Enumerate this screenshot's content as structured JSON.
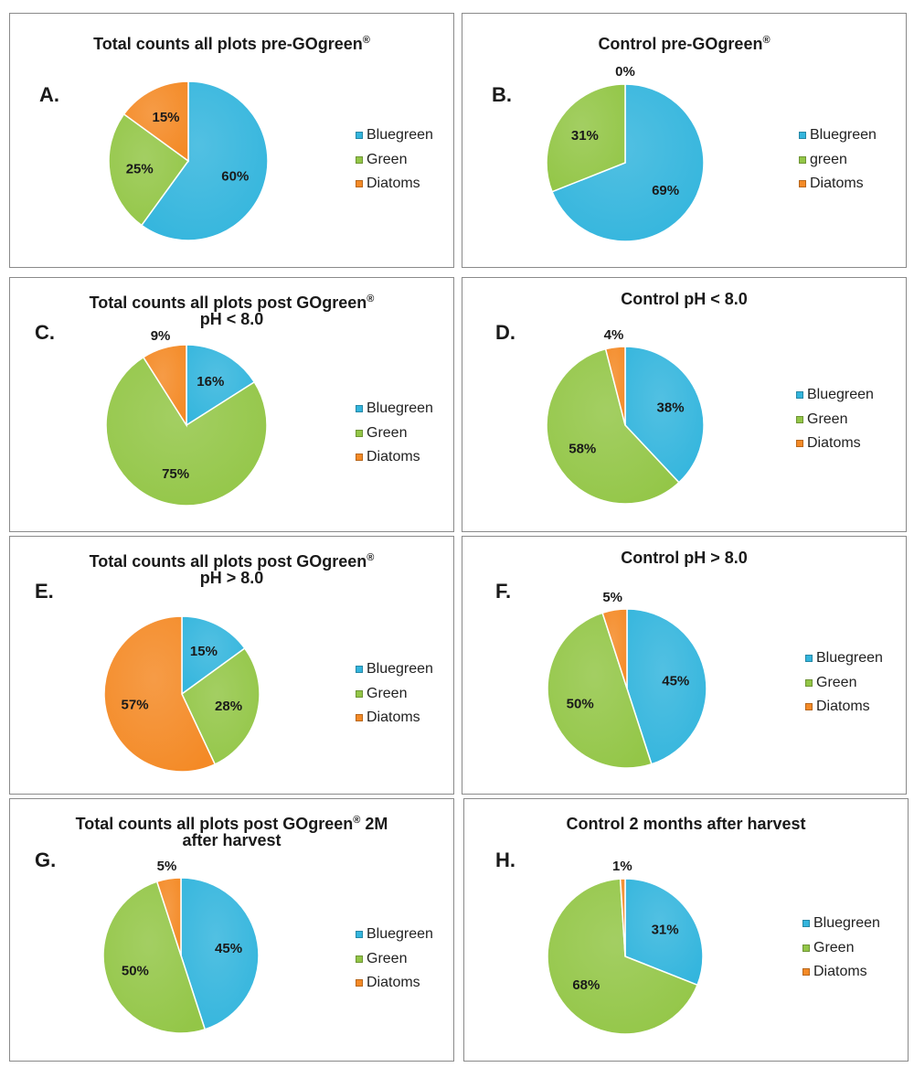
{
  "colors": {
    "bluegreen": "#33b5dd",
    "green": "#93c647",
    "diatoms": "#f48a26"
  },
  "chart_data": [
    {
      "type": "pie",
      "letter": "A.",
      "title_lines": [
        "Total counts all plots pre-GOgreen"
      ],
      "title_reg": "®",
      "series": [
        {
          "name": "Bluegreen",
          "value": 60,
          "label": "60%"
        },
        {
          "name": "Green",
          "value": 25,
          "label": "25%"
        },
        {
          "name": "Diatoms",
          "value": 15,
          "label": "15%"
        }
      ]
    },
    {
      "type": "pie",
      "letter": "B.",
      "title_lines": [
        "Control pre-GOgreen"
      ],
      "title_reg": "®",
      "series": [
        {
          "name": "Bluegreen",
          "value": 69,
          "label": "69%"
        },
        {
          "name": "green",
          "value": 31,
          "label": "31%"
        },
        {
          "name": "Diatoms",
          "value": 0,
          "label": "0%"
        }
      ]
    },
    {
      "type": "pie",
      "letter": "C.",
      "title_lines": [
        "Total counts all plots post GOgreen",
        "pH < 8.0"
      ],
      "title_reg": "®",
      "series": [
        {
          "name": "Bluegreen",
          "value": 16,
          "label": "16%"
        },
        {
          "name": "Green",
          "value": 75,
          "label": "75%"
        },
        {
          "name": "Diatoms",
          "value": 9,
          "label": "9%"
        }
      ]
    },
    {
      "type": "pie",
      "letter": "D.",
      "title_lines": [
        "Control pH < 8.0"
      ],
      "title_reg": "",
      "series": [
        {
          "name": "Bluegreen",
          "value": 38,
          "label": "38%"
        },
        {
          "name": "Green",
          "value": 58,
          "label": "58%"
        },
        {
          "name": "Diatoms",
          "value": 4,
          "label": "4%"
        }
      ]
    },
    {
      "type": "pie",
      "letter": "E.",
      "title_lines": [
        "Total counts all plots post GOgreen",
        "pH > 8.0"
      ],
      "title_reg": "®",
      "series": [
        {
          "name": "Bluegreen",
          "value": 15,
          "label": "15%"
        },
        {
          "name": "Green",
          "value": 28,
          "label": "28%"
        },
        {
          "name": "Diatoms",
          "value": 57,
          "label": "57%"
        }
      ]
    },
    {
      "type": "pie",
      "letter": "F.",
      "title_lines": [
        "Control pH > 8.0"
      ],
      "title_reg": "",
      "series": [
        {
          "name": "Bluegreen",
          "value": 45,
          "label": "45%"
        },
        {
          "name": "Green",
          "value": 50,
          "label": "50%"
        },
        {
          "name": "Diatoms",
          "value": 5,
          "label": "5%"
        }
      ]
    },
    {
      "type": "pie",
      "letter": "G.",
      "title_lines": [
        "Total counts all plots post GOgreen",
        "after harvest"
      ],
      "title_reg": "®",
      "title_suffix": " 2M",
      "series": [
        {
          "name": "Bluegreen",
          "value": 45,
          "label": "45%"
        },
        {
          "name": "Green",
          "value": 50,
          "label": "50%"
        },
        {
          "name": "Diatoms",
          "value": 5,
          "label": "5%"
        }
      ]
    },
    {
      "type": "pie",
      "letter": "H.",
      "title_lines": [
        "Control 2 months after harvest"
      ],
      "title_reg": "",
      "series": [
        {
          "name": "Bluegreen",
          "value": 31,
          "label": "31%"
        },
        {
          "name": "Green",
          "value": 68,
          "label": "68%"
        },
        {
          "name": "Diatoms",
          "value": 1,
          "label": "1%"
        }
      ]
    }
  ]
}
